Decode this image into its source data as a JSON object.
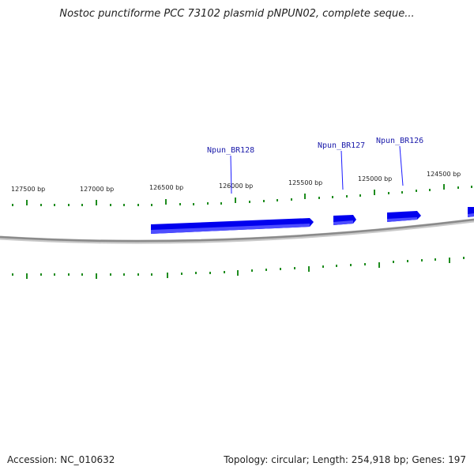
{
  "title": "Nostoc punctiforme PCC 73102 plasmid pNPUN02, complete seque...",
  "footer": {
    "accession": "Accession: NC_010632",
    "summary": "Topology: circular; Length: 254,918 bp; Genes: 197"
  },
  "colors": {
    "gene": "#1a1aff",
    "tick": "#1e8c1e",
    "backbone": "#8a8a8a",
    "label": "#1a1aaa"
  },
  "scale_labels": [
    "127500 bp",
    "127000 bp",
    "126500 bp",
    "126000 bp",
    "125500 bp",
    "125000 bp",
    "124500 bp"
  ],
  "genes": [
    {
      "label": "Npun_BR128"
    },
    {
      "label": "Npun_BR127"
    },
    {
      "label": "Npun_BR126"
    }
  ]
}
